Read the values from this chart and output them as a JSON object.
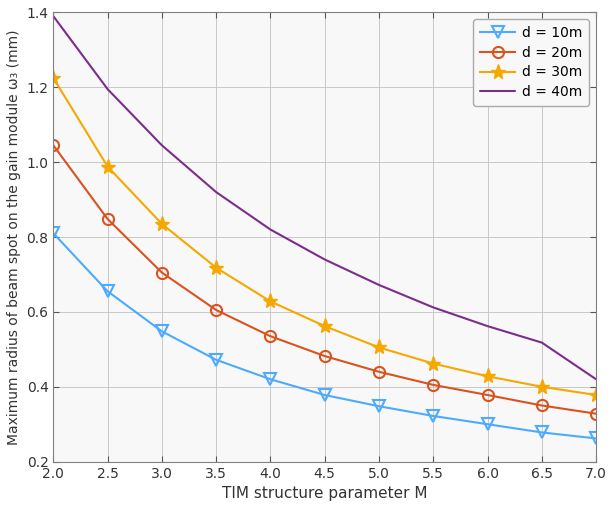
{
  "title": "",
  "xlabel": "TIM structure parameter M",
  "ylabel": "Maximum radius of beam spot on the gain module ω₃ (mm)",
  "xlim": [
    2,
    7
  ],
  "ylim": [
    0.2,
    1.4
  ],
  "xticks": [
    2,
    2.5,
    3,
    3.5,
    4,
    4.5,
    5,
    5.5,
    6,
    6.5,
    7
  ],
  "yticks": [
    0.2,
    0.4,
    0.6,
    0.8,
    1.0,
    1.2,
    1.4
  ],
  "series": [
    {
      "label": "d = 10m",
      "color": "#4DAAFF",
      "marker": "v",
      "markersize": 8,
      "markerfacecolor": "none",
      "x": [
        2,
        2.5,
        3,
        3.5,
        4,
        4.5,
        5,
        5.5,
        6,
        6.5,
        7
      ],
      "y": [
        0.81,
        0.655,
        0.548,
        0.472,
        0.42,
        0.378,
        0.348,
        0.322,
        0.3,
        0.278,
        0.262
      ]
    },
    {
      "label": "d = 20m",
      "color": "#D9531E",
      "marker": "o",
      "markersize": 8,
      "markerfacecolor": "none",
      "x": [
        2,
        2.5,
        3,
        3.5,
        4,
        4.5,
        5,
        5.5,
        6,
        6.5,
        7
      ],
      "y": [
        1.045,
        0.848,
        0.705,
        0.605,
        0.535,
        0.482,
        0.44,
        0.405,
        0.378,
        0.35,
        0.328
      ]
    },
    {
      "label": "d = 30m",
      "color": "#F5A800",
      "marker": "*",
      "markersize": 11,
      "markerfacecolor": "#F5A800",
      "x": [
        2,
        2.5,
        3,
        3.5,
        4,
        4.5,
        5,
        5.5,
        6,
        6.5,
        7
      ],
      "y": [
        1.225,
        0.988,
        0.835,
        0.718,
        0.628,
        0.562,
        0.505,
        0.462,
        0.428,
        0.4,
        0.378
      ]
    },
    {
      "label": "d = 40m",
      "color": "#7B2D8B",
      "marker": null,
      "markersize": 0,
      "markerfacecolor": "none",
      "x": [
        2,
        2.5,
        3,
        3.5,
        4,
        4.5,
        5,
        5.5,
        6,
        6.5,
        7
      ],
      "y": [
        1.39,
        1.195,
        1.045,
        0.92,
        0.82,
        0.74,
        0.672,
        0.612,
        0.562,
        0.518,
        0.42
      ]
    }
  ],
  "background_color": "#ffffff",
  "axes_facecolor": "#f8f8f8",
  "grid_color": "#c8c8c8",
  "legend_loc": "upper right",
  "figsize": [
    6.14,
    5.08
  ],
  "dpi": 100
}
